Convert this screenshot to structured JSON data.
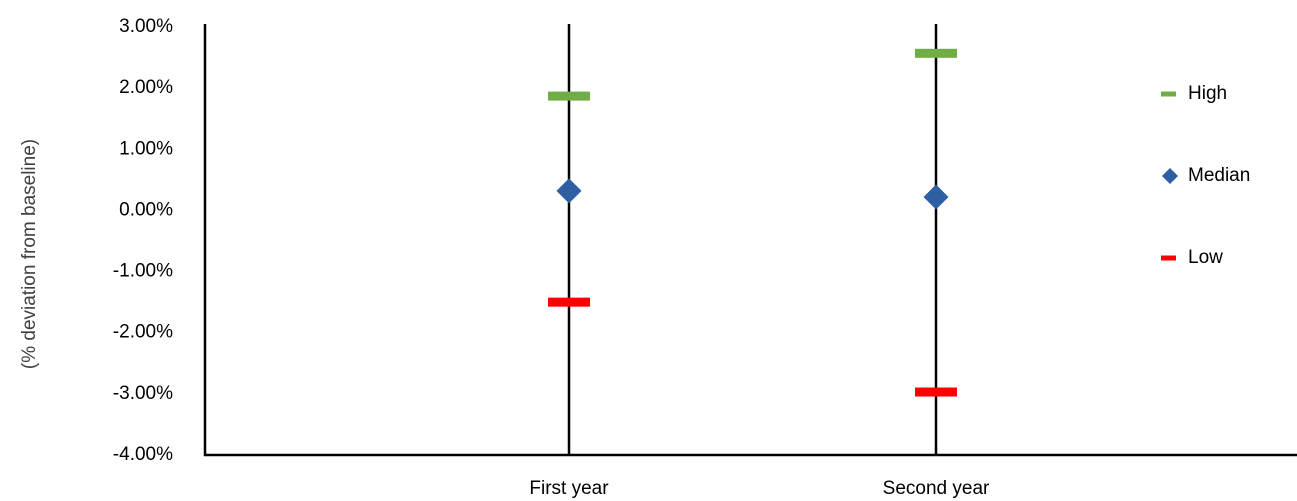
{
  "chart_data": {
    "type": "scatter",
    "title": "",
    "ylabel": "(% deviation from baseline)",
    "xlabel": "",
    "categories": [
      "First year",
      "Second year"
    ],
    "ylim": [
      -4.0,
      3.0
    ],
    "ytick_values": [
      3.0,
      2.0,
      1.0,
      0.0,
      -1.0,
      -2.0,
      -3.0,
      -4.0
    ],
    "ytick_labels": [
      "3.00%",
      "2.00%",
      "1.00%",
      "0.00%",
      "-1.00%",
      "-2.00%",
      "-3.00%",
      "-4.00%"
    ],
    "grid": false,
    "legend_position": "right",
    "series": [
      {
        "name": "High",
        "marker": "dash",
        "color": "#70ad47",
        "values": [
          1.87,
          2.57
        ]
      },
      {
        "name": "Median",
        "marker": "diamond",
        "color": "#2e5fa3",
        "values": [
          0.32,
          0.22
        ]
      },
      {
        "name": "Low",
        "marker": "dash",
        "color": "#ff0000",
        "values": [
          -1.5,
          -2.97
        ]
      }
    ]
  }
}
